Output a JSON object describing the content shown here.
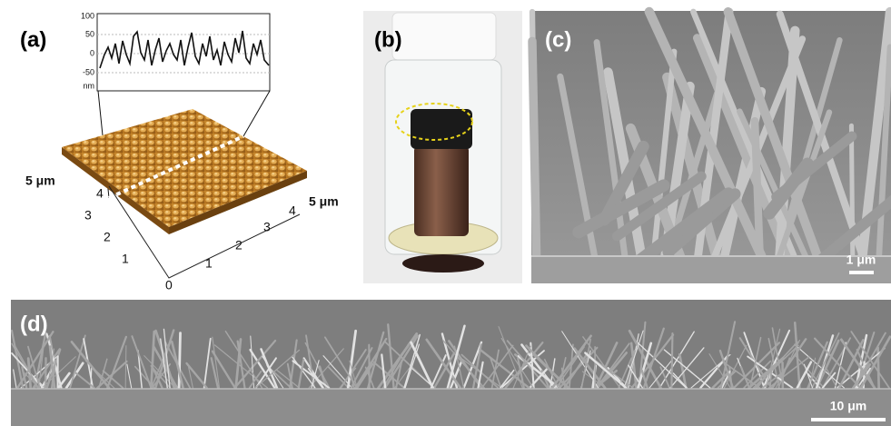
{
  "panels": [
    {
      "label": "(a)",
      "profile": {
        "ticks": [
          100,
          50,
          0,
          -50
        ],
        "unit": "nm"
      },
      "axis_labels": [
        "5 μm",
        "5 μm"
      ],
      "left_ticks": [
        4,
        3,
        2,
        1
      ],
      "right_ticks": [
        1,
        2,
        3,
        4
      ],
      "origin": 0
    },
    {
      "label": "(b)"
    },
    {
      "label": "(c)",
      "scale_bar": "1 μm"
    },
    {
      "label": "(d)",
      "scale_bar": "10 μm"
    }
  ]
}
